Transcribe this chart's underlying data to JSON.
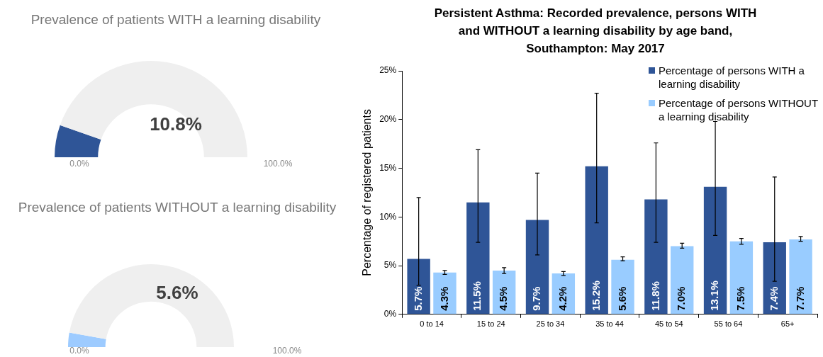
{
  "chart_data": [
    {
      "type": "donut",
      "title": "Prevalence of patients WITH a learning disability",
      "categories": [
        null,
        null
      ],
      "values": [
        10.8,
        89.2
      ],
      "colors": [
        "#2f5597",
        "#efefef"
      ],
      "annotations": [
        "10.8%",
        "0.0%",
        "100.0%"
      ]
    },
    {
      "type": "donut",
      "title": "Prevalence of patients WITHOUT a learning disability",
      "categories": [
        null,
        null
      ],
      "values": [
        5.6,
        94.4
      ],
      "colors": [
        "#9dcbff",
        "#efefef"
      ],
      "annotations": [
        "5.6%",
        "0.0%",
        "100.0%"
      ]
    },
    {
      "type": "bar",
      "title": "Persistent Asthma: Recorded prevalence, persons WITH and WITHOUT a learning disability by age band, Southampton: May 2017",
      "ylabel": "Percentage of registered patients",
      "categories": [
        "0 to 14",
        "15 to 24",
        "25 to 34",
        "35 to 44",
        "45 to 54",
        "55 to 64",
        "65+"
      ],
      "series": [
        {
          "name": "Percentage of persons WITH a learning disability",
          "color": "#2f5597",
          "values": [
            5.7,
            11.5,
            9.7,
            15.2,
            11.8,
            13.1,
            7.4
          ],
          "errors": [
            [
              3.0,
              12.0
            ],
            [
              7.4,
              16.9
            ],
            [
              6.1,
              14.5
            ],
            [
              9.4,
              22.7
            ],
            [
              7.4,
              17.6
            ],
            [
              8.1,
              19.8
            ],
            [
              3.4,
              14.1
            ]
          ],
          "value_labels": [
            "5.7%",
            "11.5%",
            "9.7%",
            "15.2%",
            "11.8%",
            "13.1%",
            "7.4%"
          ]
        },
        {
          "name": "Percentage of persons WITHOUT a learning disability",
          "color": "#99ccff",
          "values": [
            4.3,
            4.5,
            4.2,
            5.6,
            7.0,
            7.5,
            7.7
          ],
          "errors": [
            [
              4.1,
              4.5
            ],
            [
              4.2,
              4.8
            ],
            [
              4.0,
              4.4
            ],
            [
              5.5,
              5.9
            ],
            [
              6.8,
              7.3
            ],
            [
              7.2,
              7.8
            ],
            [
              7.5,
              8.0
            ]
          ],
          "value_labels": [
            "4.3%",
            "4.5%",
            "4.2%",
            "5.6%",
            "7.0%",
            "7.5%",
            "7.7%"
          ]
        }
      ],
      "ylim": [
        0,
        25
      ],
      "yticks": [
        {
          "value": 0,
          "label": "0%"
        },
        {
          "value": 5,
          "label": "5%"
        },
        {
          "value": 10,
          "label": "10%"
        },
        {
          "value": 15,
          "label": "15%"
        },
        {
          "value": 20,
          "label": "20%"
        },
        {
          "value": 25,
          "label": "25%"
        }
      ],
      "grid": false,
      "legend": "top right"
    }
  ]
}
